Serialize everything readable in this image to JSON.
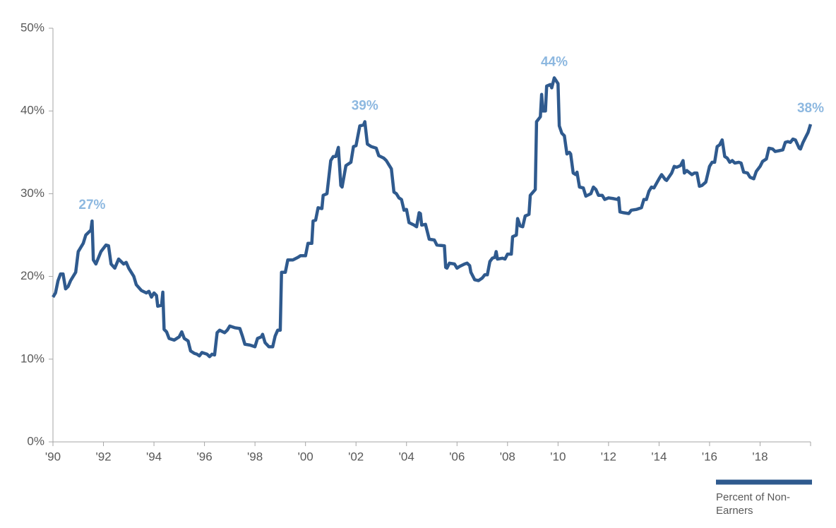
{
  "chart_data": {
    "type": "line",
    "x": [
      1990.0,
      1990.1,
      1990.2,
      1990.3,
      1990.4,
      1990.5,
      1990.6,
      1990.7,
      1990.9,
      1991.0,
      1991.2,
      1991.3,
      1991.5,
      1991.55,
      1991.6,
      1991.7,
      1991.9,
      1992.1,
      1992.2,
      1992.3,
      1992.45,
      1992.6,
      1992.8,
      1992.9,
      1993.0,
      1993.2,
      1993.3,
      1993.5,
      1993.7,
      1993.8,
      1993.9,
      1994.0,
      1994.1,
      1994.15,
      1994.3,
      1994.35,
      1994.4,
      1994.5,
      1994.6,
      1994.8,
      1995.0,
      1995.1,
      1995.2,
      1995.35,
      1995.45,
      1995.6,
      1995.7,
      1995.8,
      1995.9,
      1996.1,
      1996.2,
      1996.3,
      1996.4,
      1996.5,
      1996.6,
      1996.8,
      1996.9,
      1997.0,
      1997.2,
      1997.4,
      1997.5,
      1997.6,
      1997.8,
      1998.0,
      1998.1,
      1998.25,
      1998.3,
      1998.4,
      1998.55,
      1998.7,
      1998.8,
      1998.9,
      1999.0,
      1999.05,
      1999.2,
      1999.3,
      1999.5,
      1999.7,
      1999.8,
      2000.0,
      2000.1,
      2000.25,
      2000.3,
      2000.4,
      2000.5,
      2000.65,
      2000.7,
      2000.85,
      2001.0,
      2001.1,
      2001.2,
      2001.3,
      2001.4,
      2001.45,
      2001.6,
      2001.8,
      2001.9,
      2002.0,
      2002.15,
      2002.3,
      2002.35,
      2002.45,
      2002.6,
      2002.8,
      2002.9,
      2003.1,
      2003.2,
      2003.4,
      2003.5,
      2003.6,
      2003.7,
      2003.8,
      2003.9,
      2004.0,
      2004.1,
      2004.3,
      2004.4,
      2004.5,
      2004.55,
      2004.6,
      2004.75,
      2004.9,
      2005.1,
      2005.2,
      2005.5,
      2005.55,
      2005.6,
      2005.7,
      2005.9,
      2006.0,
      2006.1,
      2006.3,
      2006.4,
      2006.5,
      2006.55,
      2006.6,
      2006.7,
      2006.85,
      2007.0,
      2007.1,
      2007.2,
      2007.3,
      2007.4,
      2007.5,
      2007.55,
      2007.6,
      2007.8,
      2007.9,
      2008.0,
      2008.15,
      2008.2,
      2008.35,
      2008.4,
      2008.5,
      2008.6,
      2008.7,
      2008.85,
      2008.9,
      2009.1,
      2009.15,
      2009.3,
      2009.35,
      2009.4,
      2009.5,
      2009.55,
      2009.7,
      2009.75,
      2009.85,
      2010.0,
      2010.05,
      2010.15,
      2010.25,
      2010.35,
      2010.45,
      2010.5,
      2010.6,
      2010.7,
      2010.75,
      2010.85,
      2011.0,
      2011.1,
      2011.3,
      2011.4,
      2011.5,
      2011.6,
      2011.75,
      2011.85,
      2012.0,
      2012.2,
      2012.35,
      2012.4,
      2012.45,
      2012.6,
      2012.8,
      2012.9,
      2013.1,
      2013.3,
      2013.4,
      2013.5,
      2013.6,
      2013.7,
      2013.8,
      2014.0,
      2014.1,
      2014.25,
      2014.3,
      2014.5,
      2014.6,
      2014.7,
      2014.85,
      2014.95,
      2015.0,
      2015.1,
      2015.3,
      2015.4,
      2015.5,
      2015.6,
      2015.7,
      2015.85,
      2016.0,
      2016.1,
      2016.2,
      2016.3,
      2016.4,
      2016.5,
      2016.6,
      2016.7,
      2016.8,
      2016.9,
      2017.0,
      2017.15,
      2017.25,
      2017.35,
      2017.5,
      2017.6,
      2017.75,
      2017.85,
      2018.0,
      2018.1,
      2018.25,
      2018.35,
      2018.5,
      2018.6,
      2018.75,
      2018.9,
      2019.0,
      2019.1,
      2019.2,
      2019.3,
      2019.4,
      2019.55,
      2019.6,
      2019.7,
      2019.8,
      2019.9,
      2020.0
    ],
    "series": [
      {
        "name": "Percent of Non-Earners",
        "color": "#2f5a8e",
        "values": [
          17.5,
          18,
          19.5,
          20.3,
          20.3,
          18.5,
          18.8,
          19.5,
          20.5,
          23,
          24,
          25,
          25.6,
          26.7,
          22,
          21.5,
          23,
          23.8,
          23.7,
          21.5,
          21,
          22.1,
          21.5,
          21.7,
          21,
          20,
          19,
          18.3,
          18,
          18.2,
          17.5,
          18,
          17.7,
          16.4,
          16.5,
          18.1,
          13.6,
          13.3,
          12.5,
          12.3,
          12.7,
          13.3,
          12.5,
          12.2,
          11,
          10.7,
          10.6,
          10.4,
          10.8,
          10.6,
          10.3,
          10.6,
          10.5,
          13.2,
          13.5,
          13.2,
          13.5,
          14,
          13.8,
          13.7,
          12.8,
          11.8,
          11.7,
          11.5,
          12.5,
          12.7,
          13,
          12,
          11.5,
          11.5,
          12.8,
          13.5,
          13.5,
          20.5,
          20.5,
          22,
          22,
          22.3,
          22.5,
          22.5,
          24,
          24,
          26.7,
          26.8,
          28.3,
          28.2,
          29.8,
          30,
          34,
          34.5,
          34.5,
          35.6,
          31,
          30.8,
          33.4,
          33.8,
          35.7,
          35.8,
          38.2,
          38.3,
          38.7,
          36,
          35.7,
          35.5,
          34.6,
          34.3,
          34,
          33,
          30.2,
          30,
          29.5,
          29.3,
          28,
          28.1,
          26.5,
          26.2,
          26,
          27.7,
          27.6,
          26.2,
          26.3,
          24.5,
          24.4,
          23.8,
          23.7,
          21.1,
          21,
          21.6,
          21.5,
          21,
          21.2,
          21.5,
          21.6,
          21.3,
          20.5,
          20.2,
          19.6,
          19.5,
          19.8,
          20.2,
          20.2,
          21.8,
          22.2,
          22.3,
          23,
          22.1,
          22.2,
          22.1,
          22.7,
          22.7,
          24.8,
          25,
          27,
          26.1,
          26,
          27.3,
          27.5,
          29.8,
          30.5,
          38.7,
          39.3,
          42,
          40,
          40,
          43,
          43.2,
          42.8,
          44,
          43.3,
          38.2,
          37.3,
          37,
          34.8,
          35,
          34.8,
          32.5,
          32.3,
          32.6,
          30.8,
          30.7,
          29.7,
          30,
          30.8,
          30.5,
          29.8,
          29.8,
          29.3,
          29.5,
          29.4,
          29.3,
          29.5,
          27.8,
          27.7,
          27.6,
          28,
          28.1,
          28.3,
          29.3,
          29.3,
          30.3,
          30.8,
          30.7,
          31.8,
          32.3,
          31.7,
          31.6,
          32.5,
          33.3,
          33.2,
          33.4,
          34,
          32.5,
          32.8,
          32.3,
          32.5,
          32.5,
          30.9,
          31,
          31.4,
          33.3,
          33.8,
          33.8,
          35.7,
          35.9,
          36.5,
          34.5,
          34.3,
          33.8,
          34,
          33.7,
          33.8,
          33.7,
          32.6,
          32.5,
          32,
          31.8,
          32.7,
          33.3,
          33.9,
          34.2,
          35.5,
          35.4,
          35.1,
          35.2,
          35.3,
          36.2,
          36.3,
          36.2,
          36.6,
          36.5,
          35.5,
          35.4,
          36.2,
          36.8,
          37.4,
          38.4
        ]
      }
    ],
    "annotations": [
      {
        "label": "27%",
        "x": 1991.55,
        "value": 26.7
      },
      {
        "label": "39%",
        "x": 2002.35,
        "value": 38.7
      },
      {
        "label": "44%",
        "x": 2009.85,
        "value": 44
      },
      {
        "label": "38%",
        "x": 2020.0,
        "value": 38.4
      }
    ],
    "xlim": [
      1990,
      2020
    ],
    "xticks": [
      {
        "value": 1990,
        "label": "'90"
      },
      {
        "value": 1992,
        "label": "'92"
      },
      {
        "value": 1994,
        "label": "'94"
      },
      {
        "value": 1996,
        "label": "'96"
      },
      {
        "value": 1998,
        "label": "'98"
      },
      {
        "value": 2000,
        "label": "'00"
      },
      {
        "value": 2002,
        "label": "'02"
      },
      {
        "value": 2004,
        "label": "'04"
      },
      {
        "value": 2006,
        "label": "'06"
      },
      {
        "value": 2008,
        "label": "'08"
      },
      {
        "value": 2010,
        "label": "'10"
      },
      {
        "value": 2012,
        "label": "'12"
      },
      {
        "value": 2014,
        "label": "'14"
      },
      {
        "value": 2016,
        "label": "'16"
      },
      {
        "value": 2018,
        "label": "'18"
      }
    ],
    "ylim": [
      0,
      50
    ],
    "yticks": [
      {
        "value": 0,
        "label": "0%"
      },
      {
        "value": 10,
        "label": "10%"
      },
      {
        "value": 20,
        "label": "20%"
      },
      {
        "value": 30,
        "label": "30%"
      },
      {
        "value": 40,
        "label": "40%"
      },
      {
        "value": 50,
        "label": "50%"
      }
    ],
    "grid": false,
    "legend": "bottom-right"
  }
}
